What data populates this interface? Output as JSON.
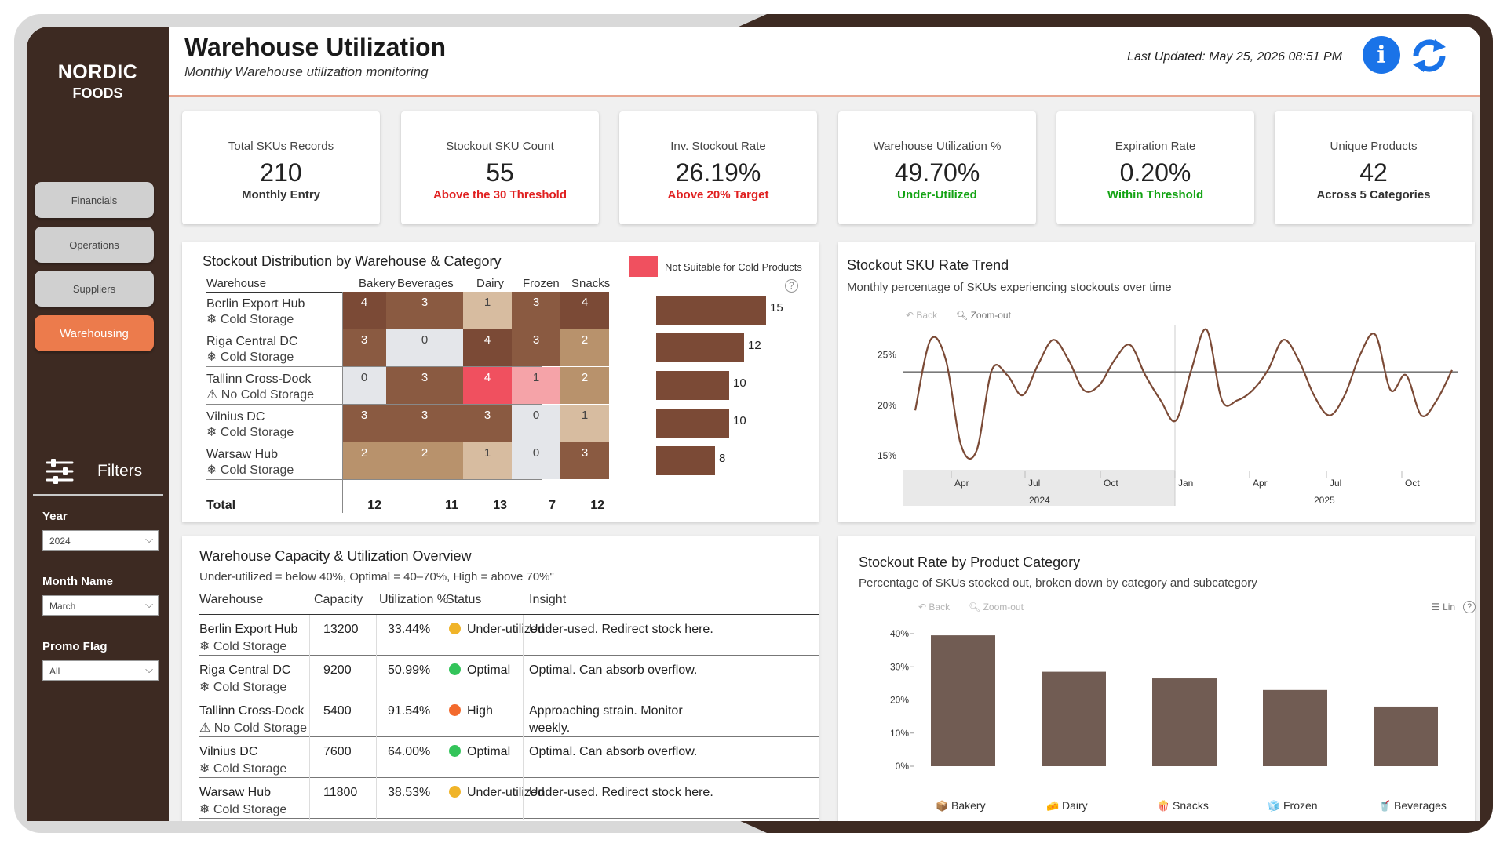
{
  "brand": {
    "line1": "NORDIC",
    "line2": "FOODS"
  },
  "nav": [
    {
      "label": "Financials",
      "active": false
    },
    {
      "label": "Operations",
      "active": false
    },
    {
      "label": "Suppliers",
      "active": false
    },
    {
      "label": "Warehousing",
      "active": true
    }
  ],
  "filters": {
    "title": "Filters",
    "year": {
      "label": "Year",
      "value": "2024"
    },
    "month": {
      "label": "Month Name",
      "value": "March"
    },
    "promo": {
      "label": "Promo Flag",
      "value": "All"
    }
  },
  "header": {
    "title": "Warehouse Utilization",
    "subtitle": "Monthly Warehouse utilization monitoring",
    "last_updated": "Last Updated: May 25, 2026 08:51 PM",
    "info_glyph": "i"
  },
  "kpis": [
    {
      "label": "Total SKUs Records",
      "value": "210",
      "note": "Monthly Entry",
      "tone": "neutral"
    },
    {
      "label": "Stockout SKU Count",
      "value": "55",
      "note": "Above the 30 Threshold",
      "tone": "red"
    },
    {
      "label": "Inv. Stockout Rate",
      "value": "26.19%",
      "note": "Above 20% Target",
      "tone": "red"
    },
    {
      "label": "Warehouse Utilization %",
      "value": "49.70%",
      "note": "Under-Utilized",
      "tone": "green"
    },
    {
      "label": "Expiration Rate",
      "value": "0.20%",
      "note": "Within Threshold",
      "tone": "green"
    },
    {
      "label": "Unique Products",
      "value": "42",
      "note": "Across 5 Categories",
      "tone": "neutral"
    }
  ],
  "stockout_dist": {
    "title": "Stockout Distribution by Warehouse & Category",
    "legend": "Not Suitable for Cold Products",
    "legend_color": "#f0505f",
    "columns": [
      "Warehouse",
      "Bakery",
      "Beverages",
      "Dairy",
      "Frozen",
      "Snacks"
    ],
    "rows": [
      {
        "name": "Berlin Export Hub",
        "sub": "❄ Cold Storage",
        "values": [
          "4",
          "3",
          "1",
          "3",
          "4"
        ],
        "total": 15
      },
      {
        "name": "Riga Central DC",
        "sub": "❄ Cold Storage",
        "values": [
          "3",
          "0",
          "4",
          "3",
          "2"
        ],
        "total": 12
      },
      {
        "name": "Tallinn Cross-Dock",
        "sub": "⚠ No Cold Storage",
        "values": [
          "0",
          "3",
          "4",
          "1",
          "2"
        ],
        "total": 10
      },
      {
        "name": "Vilnius DC",
        "sub": "❄ Cold Storage",
        "values": [
          "3",
          "3",
          "3",
          "0",
          "1"
        ],
        "total": 10
      },
      {
        "name": "Warsaw Hub",
        "sub": "❄ Cold Storage",
        "values": [
          "2",
          "2",
          "1",
          "0",
          "3"
        ],
        "total": 8
      }
    ],
    "total_label": "Total",
    "totals": [
      "12",
      "11",
      "13",
      "7",
      "12"
    ],
    "bar_labels": [
      "15",
      "12",
      "10",
      "10",
      "8"
    ],
    "help_glyph": "?"
  },
  "trend": {
    "title": "Stockout SKU Rate Trend",
    "subtitle": "Monthly percentage of SKUs experiencing stockouts over time",
    "back": "Back",
    "zoom": "Zoom-out",
    "y_ticks": [
      "25%",
      "20%",
      "15%"
    ],
    "x_ticks": [
      "Apr",
      "Jul",
      "Oct",
      "Jan",
      "Apr",
      "Jul",
      "Oct"
    ],
    "year_labels": [
      "2024",
      "2025"
    ],
    "chart_data": {
      "type": "line",
      "y_range": [
        14,
        28
      ],
      "reference_line": 23.3,
      "series": [
        {
          "values": [
            19.5,
            26.5,
            24.5,
            16,
            15.5,
            23.5,
            23,
            21,
            24,
            26.5,
            24.5,
            21.5,
            22,
            24.5,
            26,
            23,
            20.5,
            18.5,
            23.5,
            27.5,
            20.5,
            20.5,
            21.5,
            23.5,
            26.5,
            24.5,
            21,
            19,
            21,
            25,
            27,
            21.5,
            23,
            19,
            20.5,
            23.5
          ]
        }
      ],
      "x_axis": [
        "Apr",
        "Jul",
        "Oct",
        "Jan",
        "Apr",
        "Jul",
        "Oct"
      ]
    }
  },
  "capacity": {
    "title": "Warehouse Capacity & Utilization Overview",
    "subtitle": "Under-utilized = below 40%, Optimal = 40–70%, High = above 70%\"",
    "columns": [
      "Warehouse",
      "Capacity",
      "Utilization %",
      "Status",
      "Insight"
    ],
    "rows": [
      {
        "name": "Berlin Export Hub",
        "sub": "❄ Cold Storage",
        "capacity": "13200",
        "util": "33.44%",
        "status": "Under-utilized",
        "dot": "#f0b429",
        "insight": "Under-used. Redirect stock here."
      },
      {
        "name": "Riga Central DC",
        "sub": "❄ Cold Storage",
        "capacity": "9200",
        "util": "50.99%",
        "status": "Optimal",
        "dot": "#33c45a",
        "insight": "Optimal. Can absorb overflow."
      },
      {
        "name": "Tallinn Cross-Dock",
        "sub": "⚠ No Cold Storage",
        "capacity": "5400",
        "util": "91.54%",
        "status": "High",
        "dot": "#f36a2d",
        "insight": "Approaching strain. Monitor weekly."
      },
      {
        "name": "Vilnius DC",
        "sub": "❄ Cold Storage",
        "capacity": "7600",
        "util": "64.00%",
        "status": "Optimal",
        "dot": "#33c45a",
        "insight": "Optimal. Can absorb overflow."
      },
      {
        "name": "Warsaw Hub",
        "sub": "❄ Cold Storage",
        "capacity": "11800",
        "util": "38.53%",
        "status": "Under-utilized",
        "dot": "#f0b429",
        "insight": "Under-used. Redirect stock here."
      }
    ]
  },
  "category_rate": {
    "title": "Stockout Rate by Product Category",
    "subtitle": "Percentage of SKUs stocked out, broken down by category and subcategory",
    "back": "Back",
    "zoom": "Zoom-out",
    "lin": "Lin",
    "help_glyph": "?",
    "y_ticks": [
      "40%",
      "30%",
      "20%",
      "10%",
      "0%"
    ],
    "chart_data": {
      "type": "bar",
      "categories": [
        "Bakery",
        "Dairy",
        "Snacks",
        "Frozen",
        "Beverages"
      ],
      "icons": [
        "📦",
        "🧀",
        "🍿",
        "🧊",
        "🥤"
      ],
      "values": [
        39.5,
        28.5,
        26.5,
        23,
        18
      ],
      "ylim": [
        0,
        40
      ],
      "color": "#715c53"
    }
  }
}
